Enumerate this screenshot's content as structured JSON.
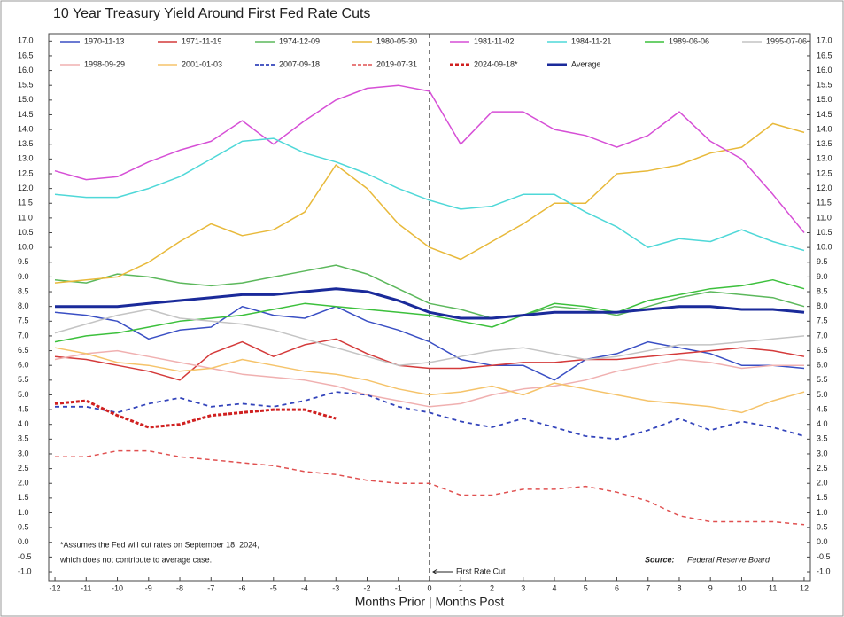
{
  "chart_data": {
    "type": "line",
    "title": "10 Year Treasury Yield Around First Fed Rate Cuts",
    "xlabel": "Months Prior | Months Post",
    "note": [
      "*Assumes the Fed will cut rates on September 18, 2024,",
      "which does not contribute to average case."
    ],
    "source_label": "Source:",
    "source": "Federal Reserve Board",
    "cut_line": {
      "x": 0,
      "label": "First Rate Cut"
    },
    "x": [
      -12,
      -11,
      -10,
      -9,
      -8,
      -7,
      -6,
      -5,
      -4,
      -3,
      -2,
      -1,
      0,
      1,
      2,
      3,
      4,
      5,
      6,
      7,
      8,
      9,
      10,
      11,
      12
    ],
    "xlim": [
      -12.2,
      12.2
    ],
    "xticks": [
      -12,
      -11,
      -10,
      -9,
      -8,
      -7,
      -6,
      -5,
      -4,
      -3,
      -2,
      -1,
      0,
      1,
      2,
      3,
      4,
      5,
      6,
      7,
      8,
      9,
      10,
      11,
      12
    ],
    "ylim": [
      -1.3,
      17.25
    ],
    "yticks": [
      {
        "value": -1,
        "label": "-1.0"
      },
      {
        "value": -0.5,
        "label": "-0.5"
      },
      {
        "value": 0,
        "label": "0.0"
      },
      {
        "value": 0.5,
        "label": "0.5"
      },
      {
        "value": 1,
        "label": "1.0"
      },
      {
        "value": 1.5,
        "label": "1.5"
      },
      {
        "value": 2,
        "label": "2.0"
      },
      {
        "value": 2.5,
        "label": "2.5"
      },
      {
        "value": 3,
        "label": "3.0"
      },
      {
        "value": 3.5,
        "label": "3.5"
      },
      {
        "value": 4,
        "label": "4.0"
      },
      {
        "value": 4.5,
        "label": "4.5"
      },
      {
        "value": 5,
        "label": "5.0"
      },
      {
        "value": 5.5,
        "label": "5.5"
      },
      {
        "value": 6,
        "label": "6.0"
      },
      {
        "value": 6.5,
        "label": "6.5"
      },
      {
        "value": 7,
        "label": "7.0"
      },
      {
        "value": 7.5,
        "label": "7.5"
      },
      {
        "value": 8,
        "label": "8.0"
      },
      {
        "value": 8.5,
        "label": "8.5"
      },
      {
        "value": 9,
        "label": "9.0"
      },
      {
        "value": 9.5,
        "label": "9.5"
      },
      {
        "value": 10,
        "label": "10.0"
      },
      {
        "value": 10.5,
        "label": "10.5"
      },
      {
        "value": 11,
        "label": "11.0"
      },
      {
        "value": 11.5,
        "label": "11.5"
      },
      {
        "value": 12,
        "label": "12.0"
      },
      {
        "value": 12.5,
        "label": "12.5"
      },
      {
        "value": 13,
        "label": "13.0"
      },
      {
        "value": 13.5,
        "label": "13.5"
      },
      {
        "value": 14,
        "label": "14.0"
      },
      {
        "value": 14.5,
        "label": "14.5"
      },
      {
        "value": 15,
        "label": "15.0"
      },
      {
        "value": 15.5,
        "label": "15.5"
      },
      {
        "value": 16,
        "label": "16.0"
      },
      {
        "value": 16.5,
        "label": "16.5"
      },
      {
        "value": 17,
        "label": "17.0"
      }
    ],
    "grid": false,
    "series": [
      {
        "name": "1970-11-13",
        "color": "#3a4fc4",
        "linestyle": "solid",
        "linewidth": 1.5,
        "values": [
          7.8,
          7.7,
          7.5,
          6.9,
          7.2,
          7.3,
          8.0,
          7.7,
          7.6,
          8.0,
          7.5,
          7.2,
          6.8,
          6.2,
          6.0,
          6.0,
          5.5,
          6.2,
          6.4,
          6.8,
          6.6,
          6.4,
          6.0,
          6.0,
          5.9
        ]
      },
      {
        "name": "1971-11-19",
        "color": "#d43a3a",
        "linestyle": "solid",
        "linewidth": 1.5,
        "values": [
          6.3,
          6.2,
          6.0,
          5.8,
          5.5,
          6.4,
          6.8,
          6.3,
          6.7,
          6.9,
          6.4,
          6.0,
          5.9,
          5.9,
          6.0,
          6.1,
          6.1,
          6.2,
          6.2,
          6.3,
          6.4,
          6.5,
          6.6,
          6.5,
          6.3
        ]
      },
      {
        "name": "1974-12-09",
        "color": "#5cb85c",
        "linestyle": "solid",
        "linewidth": 1.5,
        "values": [
          8.9,
          8.8,
          9.1,
          9.0,
          8.8,
          8.7,
          8.8,
          9.0,
          9.2,
          9.4,
          9.1,
          8.6,
          8.1,
          7.9,
          7.6,
          7.7,
          8.0,
          7.9,
          7.7,
          8.0,
          8.3,
          8.5,
          8.4,
          8.3,
          8.0
        ]
      },
      {
        "name": "1980-05-30",
        "color": "#e8b93a",
        "linestyle": "solid",
        "linewidth": 1.5,
        "values": [
          8.8,
          8.9,
          9.0,
          9.5,
          10.2,
          10.8,
          10.4,
          10.6,
          11.2,
          12.8,
          12.0,
          10.8,
          10.0,
          9.6,
          10.2,
          10.8,
          11.5,
          11.5,
          12.5,
          12.6,
          12.8,
          13.2,
          13.4,
          14.2,
          13.9
        ]
      },
      {
        "name": "1981-11-02",
        "color": "#d64fd6",
        "linestyle": "solid",
        "linewidth": 1.5,
        "values": [
          12.6,
          12.3,
          12.4,
          12.9,
          13.3,
          13.6,
          14.3,
          13.5,
          14.3,
          15.0,
          15.4,
          15.5,
          15.3,
          13.5,
          14.6,
          14.6,
          14.0,
          13.8,
          13.4,
          13.8,
          14.6,
          13.6,
          13.0,
          11.8,
          10.5
        ]
      },
      {
        "name": "1984-11-21",
        "color": "#4fd8d8",
        "linestyle": "solid",
        "linewidth": 1.5,
        "values": [
          11.8,
          11.7,
          11.7,
          12.0,
          12.4,
          13.0,
          13.6,
          13.7,
          13.2,
          12.9,
          12.5,
          12.0,
          11.6,
          11.3,
          11.4,
          11.8,
          11.8,
          11.2,
          10.7,
          10.0,
          10.3,
          10.2,
          10.6,
          10.2,
          9.9
        ]
      },
      {
        "name": "1989-06-06",
        "color": "#3cc03c",
        "linestyle": "solid",
        "linewidth": 1.5,
        "values": [
          6.8,
          7.0,
          7.1,
          7.3,
          7.5,
          7.6,
          7.7,
          7.9,
          8.1,
          8.0,
          7.9,
          7.8,
          7.7,
          7.5,
          7.3,
          7.7,
          8.1,
          8.0,
          7.8,
          8.2,
          8.4,
          8.6,
          8.7,
          8.9,
          8.6
        ]
      },
      {
        "name": "1995-07-06",
        "color": "#c4c4c4",
        "linestyle": "solid",
        "linewidth": 1.5,
        "values": [
          7.1,
          7.4,
          7.7,
          7.9,
          7.6,
          7.5,
          7.4,
          7.2,
          6.9,
          6.6,
          6.3,
          6.0,
          6.1,
          6.3,
          6.5,
          6.6,
          6.4,
          6.2,
          6.3,
          6.5,
          6.7,
          6.7,
          6.8,
          6.9,
          7.0
        ]
      },
      {
        "name": "1998-09-29",
        "color": "#f0b0b0",
        "linestyle": "solid",
        "linewidth": 1.5,
        "values": [
          6.2,
          6.4,
          6.5,
          6.3,
          6.1,
          5.9,
          5.7,
          5.6,
          5.5,
          5.3,
          5.0,
          4.8,
          4.6,
          4.7,
          5.0,
          5.2,
          5.3,
          5.5,
          5.8,
          6.0,
          6.2,
          6.1,
          5.9,
          6.0,
          6.0
        ]
      },
      {
        "name": "2001-01-03",
        "color": "#f5c36a",
        "linestyle": "solid",
        "linewidth": 1.5,
        "values": [
          6.6,
          6.4,
          6.1,
          6.0,
          5.8,
          5.9,
          6.2,
          6.0,
          5.8,
          5.7,
          5.5,
          5.2,
          5.0,
          5.1,
          5.3,
          5.0,
          5.4,
          5.2,
          5.0,
          4.8,
          4.7,
          4.6,
          4.4,
          4.8,
          5.1
        ]
      },
      {
        "name": "2007-09-18",
        "color": "#3344bb",
        "linestyle": "dashed",
        "linewidth": 1.8,
        "values": [
          4.6,
          4.6,
          4.4,
          4.7,
          4.9,
          4.6,
          4.7,
          4.6,
          4.8,
          5.1,
          5.0,
          4.6,
          4.4,
          4.1,
          3.9,
          4.2,
          3.9,
          3.6,
          3.5,
          3.8,
          4.2,
          3.8,
          4.1,
          3.9,
          3.6
        ]
      },
      {
        "name": "2019-07-31",
        "color": "#e05050",
        "linestyle": "dashed",
        "linewidth": 1.5,
        "values": [
          2.9,
          2.9,
          3.1,
          3.1,
          2.9,
          2.8,
          2.7,
          2.6,
          2.4,
          2.3,
          2.1,
          2.0,
          2.0,
          1.6,
          1.6,
          1.8,
          1.8,
          1.9,
          1.7,
          1.4,
          0.9,
          0.7,
          0.7,
          0.7,
          0.6
        ]
      },
      {
        "name": "2024-09-18*",
        "color": "#d02020",
        "linestyle": "dashed",
        "linewidth": 3,
        "values": [
          4.7,
          4.8,
          4.3,
          3.9,
          4.0,
          4.3,
          4.4,
          4.5,
          4.5,
          4.2,
          null,
          null,
          null,
          null,
          null,
          null,
          null,
          null,
          null,
          null,
          null,
          null,
          null,
          null,
          null
        ]
      },
      {
        "name": "Average",
        "color": "#1a2a9a",
        "linestyle": "solid",
        "linewidth": 3,
        "values": [
          8.0,
          8.0,
          8.0,
          8.1,
          8.2,
          8.3,
          8.4,
          8.4,
          8.5,
          8.6,
          8.5,
          8.2,
          7.8,
          7.6,
          7.6,
          7.7,
          7.8,
          7.8,
          7.8,
          7.9,
          8.0,
          8.0,
          7.9,
          7.9,
          7.8
        ]
      }
    ]
  }
}
